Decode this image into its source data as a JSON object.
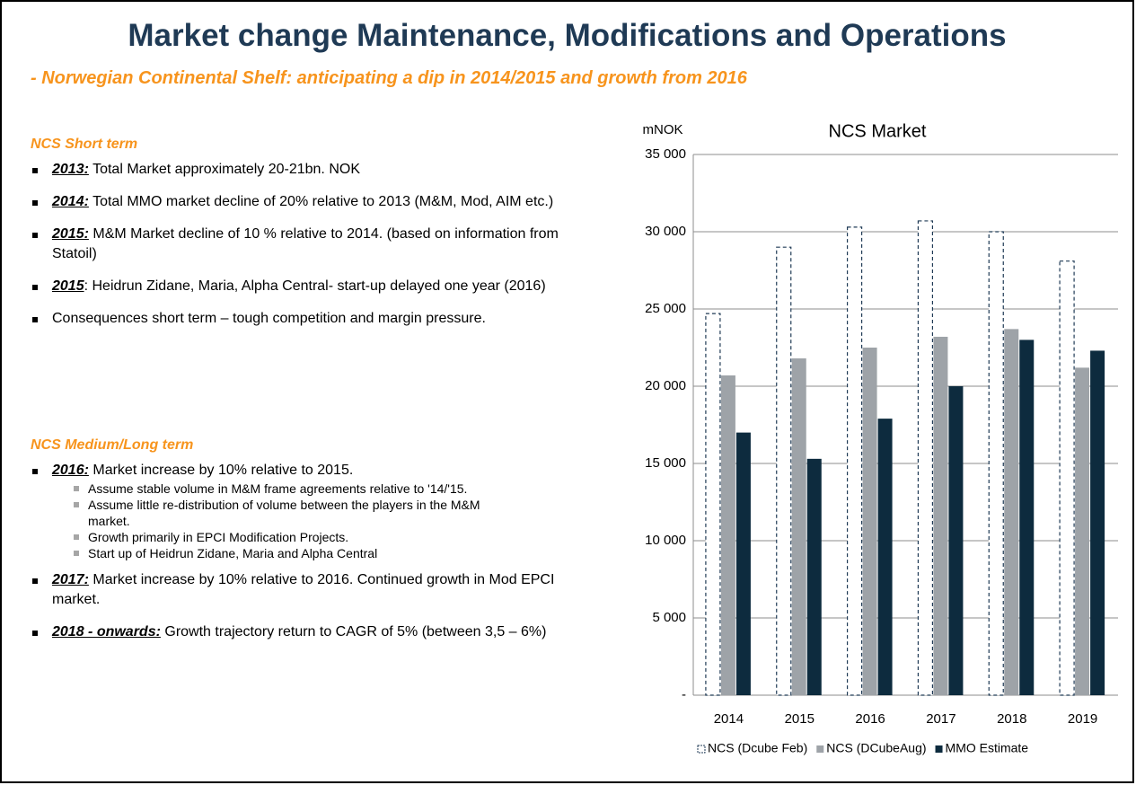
{
  "header": {
    "title": "Market change Maintenance, Modifications and Operations",
    "subtitle": "- Norwegian Continental Shelf: anticipating  a dip in 2014/2015 and growth from 2016"
  },
  "sections": [
    {
      "heading": "NCS Short term",
      "bullets": [
        {
          "lead": "2013:",
          "text": " Total Market approximately 20-21bn. NOK"
        },
        {
          "lead": "2014:",
          "text": " Total MMO market decline of 20% relative to 2013 (M&M, Mod, AIM etc.)"
        },
        {
          "lead": "2015:",
          "text": " M&M Market decline of 10 % relative to 2014. (based on information from Statoil)"
        },
        {
          "lead": "2015",
          "text": ": Heidrun Zidane, Maria, Alpha Central- start-up delayed one year (2016)"
        },
        {
          "text": "Consequences short term – tough competition and margin pressure."
        }
      ]
    },
    {
      "heading": "NCS Medium/Long term",
      "bullets": [
        {
          "lead": "2016:",
          "text": " Market increase by 10% relative to 2015.",
          "sub": [
            "Assume stable volume in M&M frame agreements relative to '14/'15.",
            "Assume little re-distribution of volume between the players in the M&M  market.",
            "Growth primarily in EPCI Modification Projects.",
            "Start up of Heidrun Zidane, Maria and Alpha Central"
          ]
        },
        {
          "lead": "2017:",
          "text": " Market increase by 10% relative to 2016. Continued growth in Mod EPCI market."
        },
        {
          "lead": "2018 - onwards:",
          "text": " Growth trajectory return to CAGR of  5% (between 3,5 – 6%)"
        }
      ]
    }
  ],
  "chart_data": {
    "type": "bar",
    "title": "NCS Market",
    "y_label": "mNOK",
    "categories": [
      "2014",
      "2015",
      "2016",
      "2017",
      "2018",
      "2019"
    ],
    "series": [
      {
        "name": "NCS (Dcube Feb)",
        "color": "#1f3a55",
        "style": "dashed-outline",
        "values": [
          24700,
          29000,
          30300,
          30700,
          30000,
          28100
        ]
      },
      {
        "name": "NCS (DCubeAug)",
        "color": "#9ea3a8",
        "values": [
          20700,
          21800,
          22500,
          23200,
          23700,
          21200
        ]
      },
      {
        "name": "MMO Estimate",
        "color": "#0d2b3e",
        "values": [
          17000,
          15300,
          17900,
          20000,
          23000,
          22300
        ]
      }
    ],
    "ylim": [
      0,
      35000
    ],
    "yticks": [
      {
        "value": 0,
        "label": "-"
      },
      {
        "value": 5000,
        "label": "5 000"
      },
      {
        "value": 10000,
        "label": "10 000"
      },
      {
        "value": 15000,
        "label": "15 000"
      },
      {
        "value": 20000,
        "label": "20 000"
      },
      {
        "value": 25000,
        "label": "25 000"
      },
      {
        "value": 30000,
        "label": "30 000"
      },
      {
        "value": 35000,
        "label": "35 000"
      }
    ],
    "grid": true,
    "legend": "bottom"
  }
}
